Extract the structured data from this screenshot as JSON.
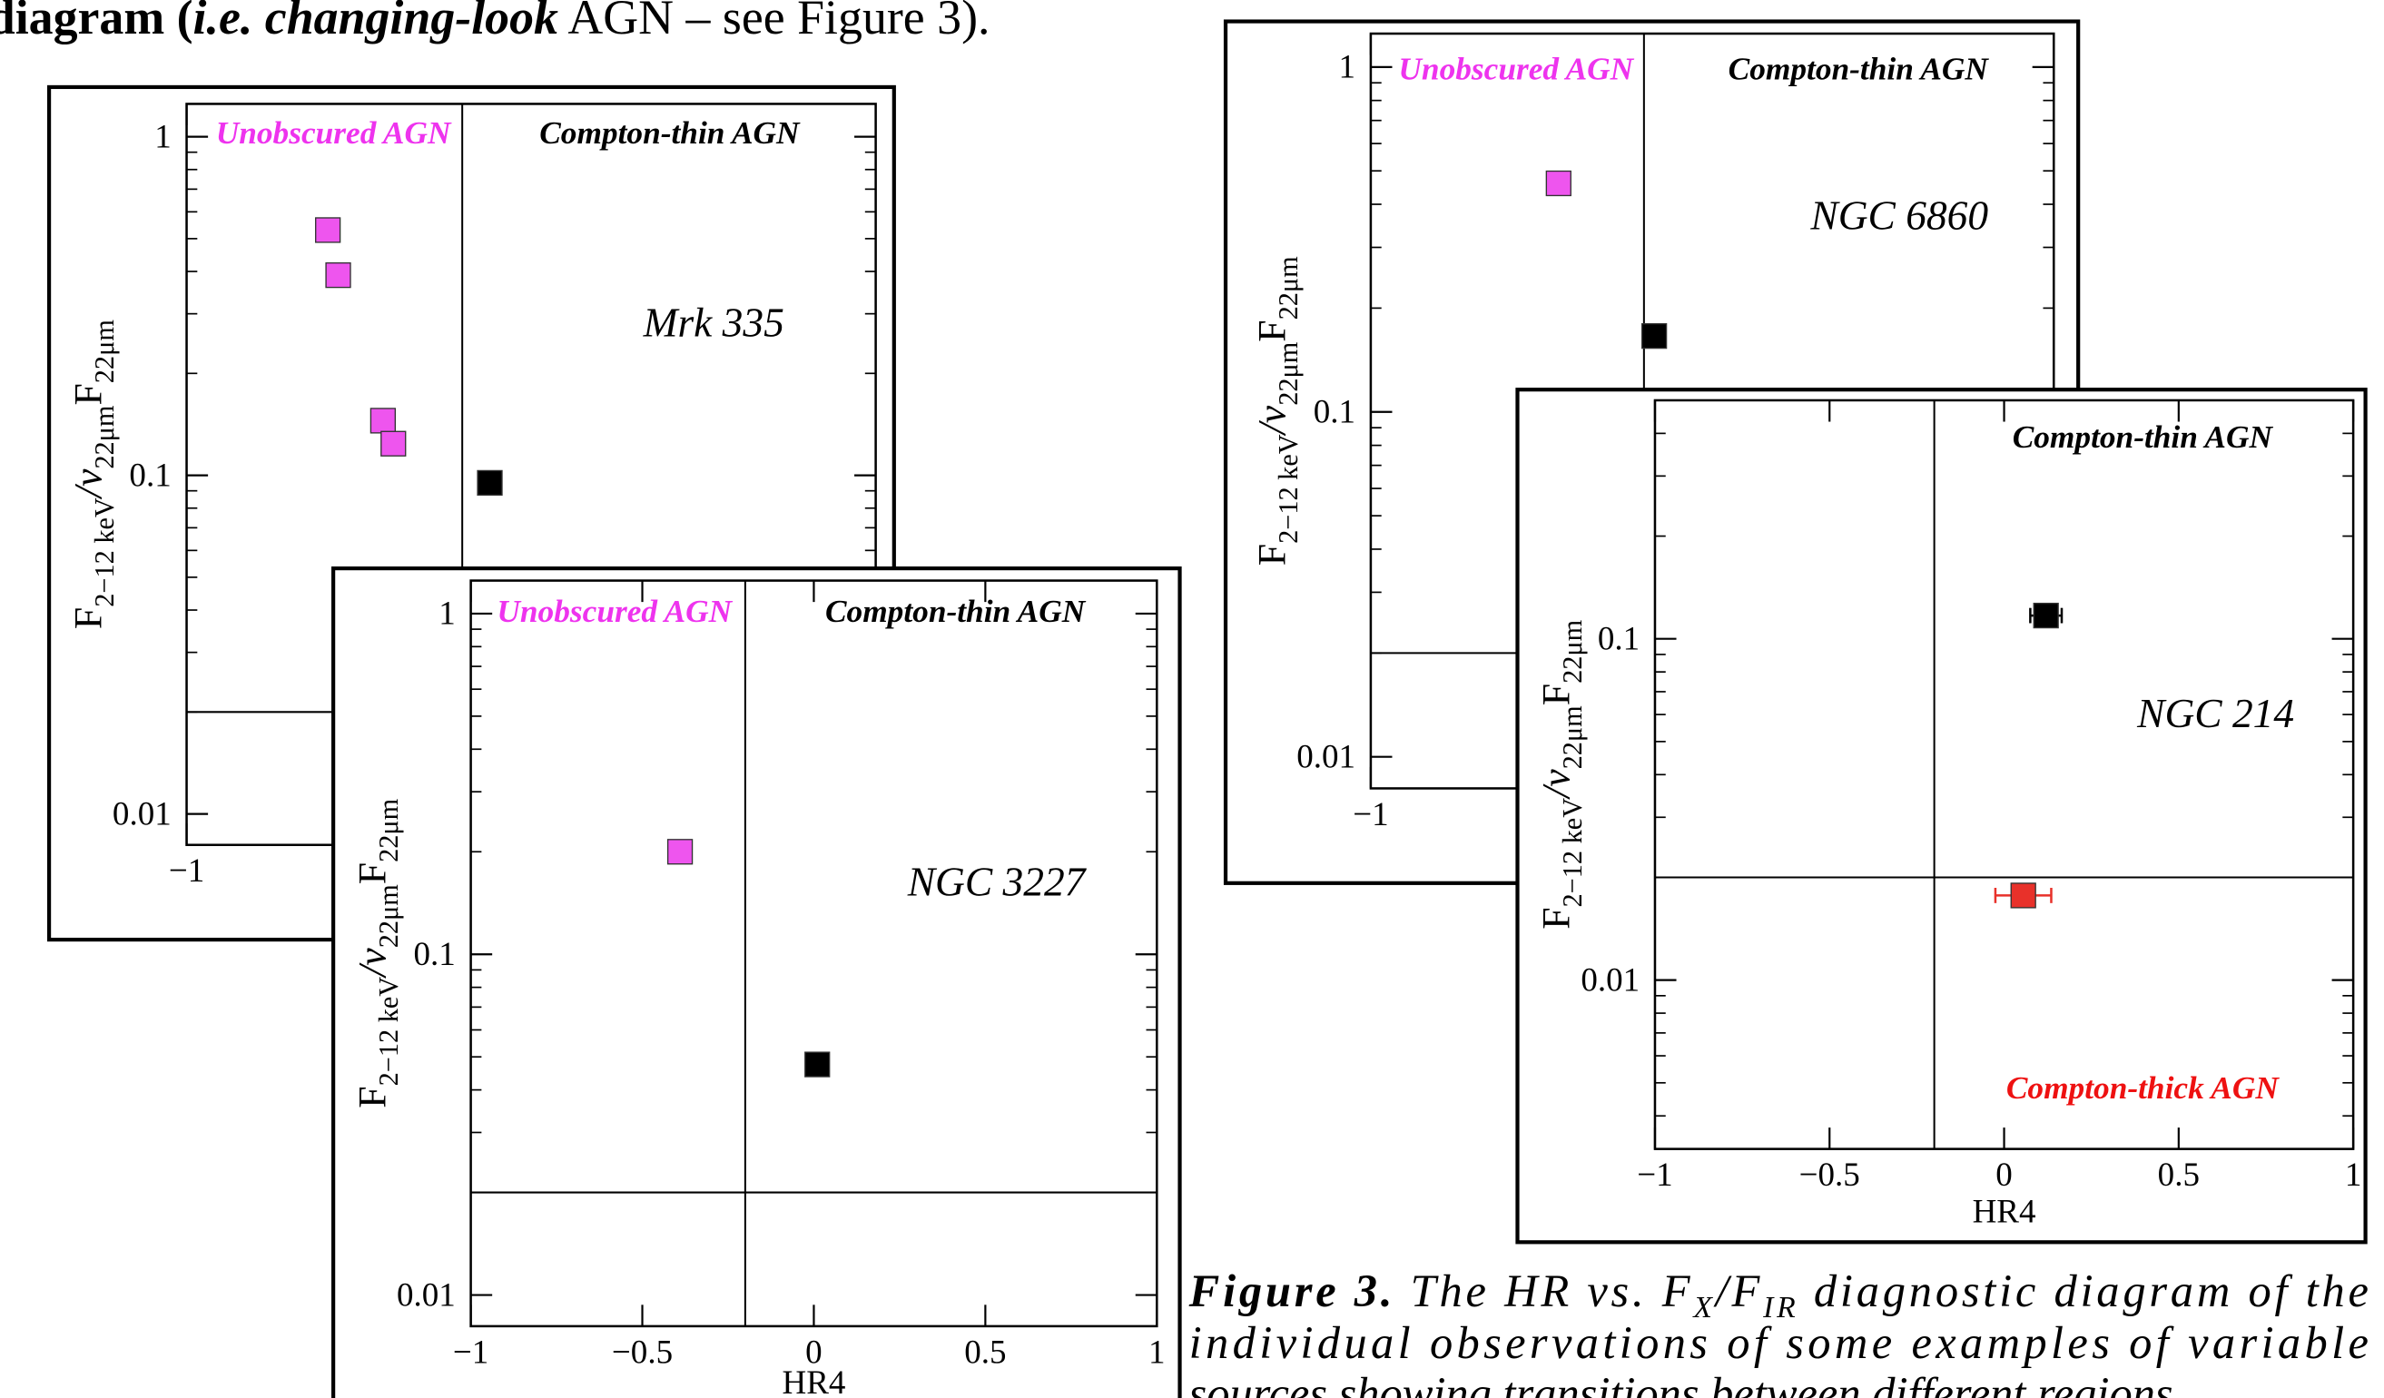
{
  "header": {
    "parts": [
      "diagram (",
      "i.e. changing-look",
      " AGN – see Figure 3)."
    ]
  },
  "caption": {
    "label": "Figure 3.",
    "lines": [
      [
        "The HR vs. F",
        "X",
        "/F",
        "IR",
        " diagnostic diagram of the"
      ],
      [
        "individual observations of some examples of variable"
      ],
      [
        "sources showing transitions between different regions."
      ]
    ]
  },
  "chart_data": [
    {
      "type": "scatter",
      "title": "Mrk 335",
      "ylabel": [
        "F",
        "2−12 keV",
        "/ν",
        "22μm",
        "F",
        "22μm"
      ],
      "annotations": [
        {
          "text": "Unobscured AGN",
          "color": "#ee33ee"
        },
        {
          "text": "Compton-thin AGN",
          "color": "#000000"
        }
      ],
      "log_y": true,
      "xlim": [
        -1,
        1
      ],
      "xticks": [
        {
          "value": -1,
          "label": "−1"
        }
      ],
      "ylim": [
        0.0081,
        1.25
      ],
      "yticks": [
        0.01,
        0.1,
        1
      ],
      "yminorticks": [
        0.02,
        0.03,
        0.04,
        0.05,
        0.06,
        0.07,
        0.08,
        0.09,
        0.2,
        0.3,
        0.4,
        0.5,
        0.6,
        0.7,
        0.8,
        0.9
      ],
      "vline": -0.2,
      "hline": 0.02,
      "series": [
        {
          "color": "#ee55ee",
          "x": [
            -0.59,
            -0.56,
            -0.43,
            -0.4
          ],
          "values": [
            0.53,
            0.39,
            0.145,
            0.124
          ]
        },
        {
          "color": "#000000",
          "x": [
            -0.12
          ],
          "values": [
            0.095
          ]
        }
      ]
    },
    {
      "type": "scatter",
      "title": "NGC 3227",
      "xlabel": "HR4",
      "ylabel": [
        "F",
        "2−12 keV",
        "/ν",
        "22μm",
        "F",
        "22μm"
      ],
      "annotations": [
        {
          "text": "Unobscured AGN",
          "color": "#ee33ee"
        },
        {
          "text": "Compton-thin AGN",
          "color": "#000000"
        }
      ],
      "log_y": true,
      "xlim": [
        -1,
        1
      ],
      "xticks": [
        {
          "value": -1,
          "label": "−1"
        },
        {
          "value": -0.5,
          "label": "−0.5"
        },
        0,
        0.5,
        1
      ],
      "ylim": [
        0.0081,
        1.25
      ],
      "yticks": [
        0.01,
        0.1,
        1
      ],
      "yminorticks": [
        0.02,
        0.03,
        0.04,
        0.05,
        0.06,
        0.07,
        0.08,
        0.09,
        0.2,
        0.3,
        0.4,
        0.5,
        0.6,
        0.7,
        0.8,
        0.9
      ],
      "vline": -0.2,
      "hline": 0.02,
      "series": [
        {
          "color": "#ee55ee",
          "x": [
            -0.39
          ],
          "values": [
            0.2
          ]
        },
        {
          "color": "#000000",
          "x": [
            0.01
          ],
          "values": [
            0.0475
          ]
        }
      ]
    },
    {
      "type": "scatter",
      "title": "NGC 6860",
      "ylabel": [
        "F",
        "2−12 keV",
        "/ν",
        "22μm",
        "F",
        "22μm"
      ],
      "annotations": [
        {
          "text": "Unobscured AGN",
          "color": "#ee33ee"
        },
        {
          "text": "Compton-thin AGN",
          "color": "#000000"
        }
      ],
      "log_y": true,
      "xlim": [
        -1,
        1
      ],
      "xticks": [
        {
          "value": -1,
          "label": "−1"
        }
      ],
      "ylim": [
        0.0081,
        1.25
      ],
      "yticks": [
        0.01,
        0.1,
        1
      ],
      "yminorticks": [
        0.02,
        0.03,
        0.04,
        0.05,
        0.06,
        0.07,
        0.08,
        0.09,
        0.2,
        0.3,
        0.4,
        0.5,
        0.6,
        0.7,
        0.8,
        0.9
      ],
      "vline": -0.2,
      "hline": 0.02,
      "series": [
        {
          "color": "#ee55ee",
          "x": [
            -0.45
          ],
          "values": [
            0.46
          ]
        },
        {
          "color": "#000000",
          "x": [
            -0.17
          ],
          "values": [
            0.166
          ]
        }
      ]
    },
    {
      "type": "scatter",
      "title": "NGC 214",
      "xlabel": "HR4",
      "ylabel": [
        "F",
        "2−12 keV",
        "/ν",
        "22μm",
        "F",
        "22μm"
      ],
      "annotations": [
        {
          "text": "Compton-thin AGN",
          "color": "#000000"
        },
        {
          "text": "Compton-thick AGN",
          "color": "#ee1111"
        }
      ],
      "log_y": true,
      "xlim": [
        -1,
        1
      ],
      "xticks": [
        {
          "value": -1,
          "label": "−1"
        },
        {
          "value": -0.5,
          "label": "−0.5"
        },
        0,
        0.5,
        1
      ],
      "ylim": [
        0.0032,
        0.5
      ],
      "yticks": [
        0.01,
        0.1
      ],
      "yminorticks": [
        0.004,
        0.005,
        0.006,
        0.007,
        0.008,
        0.009,
        0.02,
        0.03,
        0.04,
        0.05,
        0.06,
        0.07,
        0.08,
        0.09,
        0.2,
        0.3,
        0.4
      ],
      "vline": -0.2,
      "hline": 0.02,
      "series": [
        {
          "color": "#000000",
          "x": [
            0.12
          ],
          "values": [
            0.117
          ],
          "xerr": [
            0.045
          ]
        },
        {
          "color": "#e8312a",
          "x": [
            0.055
          ],
          "values": [
            0.0177
          ],
          "xerr": [
            0.08
          ]
        }
      ]
    }
  ]
}
